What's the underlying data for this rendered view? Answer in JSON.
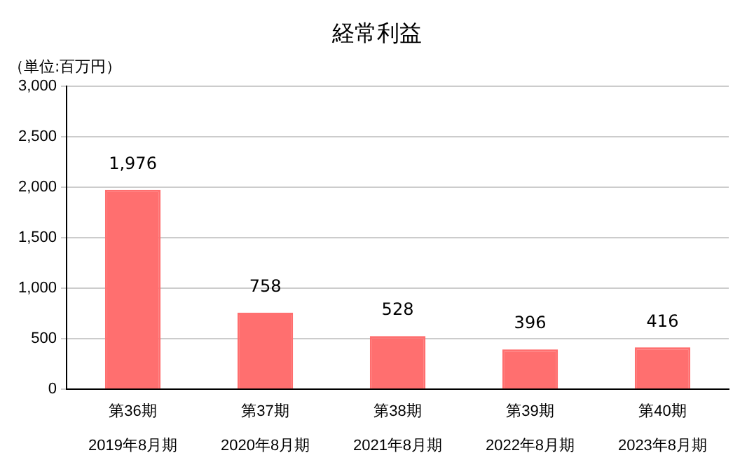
{
  "chart_data": {
    "type": "bar",
    "title": "経常利益",
    "ylabel": "（単位:百万円）",
    "categories": [
      "第36期\n2019年8月期",
      "第37期\n2020年8月期",
      "第38期\n2021年8月期",
      "第39期\n2022年8月期",
      "第40期\n2023年8月期"
    ],
    "values": [
      1976,
      758,
      528,
      396,
      416
    ],
    "value_labels": [
      "1,976",
      "758",
      "528",
      "396",
      "416"
    ],
    "color": "#ff6f6f",
    "ylim": [
      0,
      3000
    ],
    "yticks": [
      {
        "value": 0,
        "label": "0"
      },
      {
        "value": 500,
        "label": "500"
      },
      {
        "value": 1000,
        "label": "1,000"
      },
      {
        "value": 1500,
        "label": "1,500"
      },
      {
        "value": 2000,
        "label": "2,000"
      },
      {
        "value": 2500,
        "label": "2,500"
      },
      {
        "value": 3000,
        "label": "3,000"
      }
    ],
    "grid": "y",
    "legend": false
  }
}
